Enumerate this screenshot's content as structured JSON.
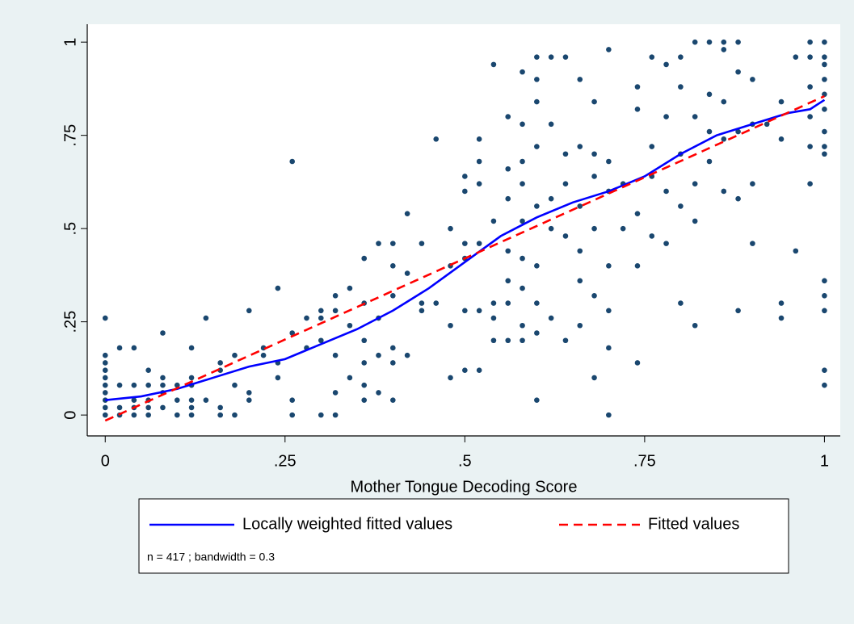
{
  "chart_data": {
    "type": "scatter",
    "x_label": "Mother Tongue Decoding Score",
    "xlim": [
      -0.025,
      1.022
    ],
    "ylim": [
      -0.056,
      1.048
    ],
    "xticks": [
      0,
      {
        "value": 0.25,
        "label": ".25"
      },
      {
        "value": 0.5,
        "label": ".5"
      },
      {
        "value": 0.75,
        "label": ".75"
      },
      1
    ],
    "yticks": [
      0,
      {
        "value": 0.25,
        "label": ".25"
      },
      {
        "value": 0.5,
        "label": ".5"
      },
      {
        "value": 0.75,
        "label": ".75"
      },
      1
    ],
    "note": "n = 417 ; bandwidth = 0.3",
    "series": [
      {
        "type": "scatter",
        "color": "#1a476f",
        "x": [
          0,
          0,
          0,
          0,
          0,
          0,
          0,
          0,
          0,
          0,
          0.02,
          0.02,
          0.02,
          0.02,
          0.04,
          0.04,
          0.04,
          0.04,
          0.04,
          0.06,
          0.06,
          0.06,
          0.06,
          0.06,
          0.08,
          0.08,
          0.08,
          0.08,
          0.08,
          0.1,
          0.1,
          0.1,
          0.12,
          0.12,
          0.12,
          0.12,
          0.12,
          0.12,
          0.14,
          0.14,
          0.16,
          0.16,
          0.16,
          0.16,
          0.18,
          0.18,
          0.18,
          0.2,
          0.2,
          0.2,
          0.22,
          0.22,
          0.24,
          0.24,
          0.24,
          0.26,
          0.26,
          0.26,
          0.26,
          0.28,
          0.28,
          0.3,
          0.3,
          0.3,
          0.3,
          0.32,
          0.32,
          0.32,
          0.32,
          0.32,
          0.34,
          0.34,
          0.34,
          0.36,
          0.36,
          0.36,
          0.36,
          0.36,
          0.36,
          0.38,
          0.38,
          0.38,
          0.38,
          0.4,
          0.4,
          0.4,
          0.4,
          0.4,
          0.4,
          0.42,
          0.42,
          0.42,
          0.44,
          0.44,
          0.44,
          0.46,
          0.46,
          0.48,
          0.48,
          0.48,
          0.48,
          0.5,
          0.5,
          0.5,
          0.5,
          0.5,
          0.5,
          0.52,
          0.52,
          0.52,
          0.52,
          0.52,
          0.52,
          0.54,
          0.54,
          0.54,
          0.54,
          0.54,
          0.56,
          0.56,
          0.56,
          0.56,
          0.56,
          0.56,
          0.56,
          0.58,
          0.58,
          0.58,
          0.58,
          0.58,
          0.58,
          0.58,
          0.58,
          0.58,
          0.6,
          0.6,
          0.6,
          0.6,
          0.6,
          0.6,
          0.6,
          0.6,
          0.6,
          0.62,
          0.62,
          0.62,
          0.62,
          0.62,
          0.64,
          0.64,
          0.64,
          0.64,
          0.64,
          0.66,
          0.66,
          0.66,
          0.66,
          0.66,
          0.66,
          0.68,
          0.68,
          0.68,
          0.68,
          0.68,
          0.68,
          0.7,
          0.7,
          0.7,
          0.7,
          0.7,
          0.7,
          0.7,
          0.72,
          0.72,
          0.74,
          0.74,
          0.74,
          0.74,
          0.74,
          0.76,
          0.76,
          0.76,
          0.76,
          0.78,
          0.78,
          0.78,
          0.78,
          0.8,
          0.8,
          0.8,
          0.8,
          0.8,
          0.82,
          0.82,
          0.82,
          0.82,
          0.82,
          0.84,
          0.84,
          0.84,
          0.84,
          0.86,
          0.86,
          0.86,
          0.86,
          0.86,
          0.88,
          0.88,
          0.88,
          0.88,
          0.88,
          0.9,
          0.9,
          0.9,
          0.9,
          0.92,
          0.94,
          0.94,
          0.94,
          0.94,
          0.96,
          0.96,
          0.98,
          0.98,
          0.98,
          0.98,
          0.98,
          0.98,
          1,
          1,
          1,
          1,
          1,
          1,
          1,
          1,
          1,
          1,
          1,
          1,
          1,
          1
        ],
        "values": [
          0,
          0.02,
          0.04,
          0.06,
          0.08,
          0.1,
          0.12,
          0.14,
          0.16,
          0.26,
          0,
          0.02,
          0.08,
          0.18,
          0,
          0.02,
          0.04,
          0.08,
          0.18,
          0,
          0.02,
          0.04,
          0.08,
          0.12,
          0.02,
          0.06,
          0.08,
          0.1,
          0.22,
          0,
          0.04,
          0.08,
          0,
          0.02,
          0.04,
          0.08,
          0.1,
          0.18,
          0.04,
          0.26,
          0,
          0.02,
          0.12,
          0.14,
          0,
          0.08,
          0.16,
          0.04,
          0.06,
          0.28,
          0.16,
          0.18,
          0.1,
          0.14,
          0.34,
          0,
          0.04,
          0.22,
          0.68,
          0.18,
          0.26,
          0,
          0.2,
          0.26,
          0.28,
          0,
          0.06,
          0.16,
          0.28,
          0.32,
          0.1,
          0.24,
          0.34,
          0.04,
          0.08,
          0.14,
          0.2,
          0.3,
          0.42,
          0.06,
          0.16,
          0.26,
          0.46,
          0.04,
          0.14,
          0.18,
          0.32,
          0.4,
          0.46,
          0.16,
          0.38,
          0.54,
          0.28,
          0.3,
          0.46,
          0.3,
          0.74,
          0.1,
          0.24,
          0.4,
          0.5,
          0.12,
          0.28,
          0.42,
          0.46,
          0.6,
          0.64,
          0.12,
          0.28,
          0.46,
          0.62,
          0.68,
          0.74,
          0.2,
          0.26,
          0.3,
          0.52,
          0.94,
          0.2,
          0.3,
          0.36,
          0.44,
          0.58,
          0.66,
          0.8,
          0.2,
          0.24,
          0.34,
          0.42,
          0.52,
          0.62,
          0.68,
          0.78,
          0.92,
          0.04,
          0.22,
          0.3,
          0.4,
          0.56,
          0.72,
          0.84,
          0.9,
          0.96,
          0.26,
          0.5,
          0.58,
          0.78,
          0.96,
          0.2,
          0.48,
          0.62,
          0.7,
          0.96,
          0.24,
          0.36,
          0.44,
          0.56,
          0.72,
          0.9,
          0.1,
          0.32,
          0.5,
          0.64,
          0.7,
          0.84,
          0,
          0.18,
          0.28,
          0.4,
          0.6,
          0.68,
          0.98,
          0.5,
          0.62,
          0.14,
          0.4,
          0.54,
          0.82,
          0.88,
          0.48,
          0.64,
          0.72,
          0.96,
          0.46,
          0.6,
          0.8,
          0.94,
          0.3,
          0.56,
          0.7,
          0.88,
          0.96,
          0.24,
          0.52,
          0.62,
          0.8,
          1,
          0.68,
          0.76,
          0.86,
          1,
          0.6,
          0.74,
          0.84,
          0.98,
          1,
          0.28,
          0.58,
          0.76,
          0.92,
          1,
          0.46,
          0.62,
          0.78,
          0.9,
          0.78,
          0.26,
          0.3,
          0.74,
          0.84,
          0.44,
          0.96,
          0.62,
          0.72,
          0.8,
          0.88,
          0.96,
          1,
          0.08,
          0.12,
          0.28,
          0.32,
          0.36,
          0.7,
          0.72,
          0.76,
          0.82,
          0.86,
          0.9,
          0.94,
          0.96,
          1
        ]
      },
      {
        "type": "line",
        "name": "Locally weighted fitted values",
        "color": "#0000ff",
        "dashed": false,
        "x": [
          0,
          0.05,
          0.1,
          0.15,
          0.2,
          0.25,
          0.3,
          0.35,
          0.4,
          0.45,
          0.5,
          0.55,
          0.6,
          0.65,
          0.7,
          0.75,
          0.8,
          0.85,
          0.9,
          0.95,
          0.98,
          1
        ],
        "values": [
          0.04,
          0.05,
          0.07,
          0.1,
          0.13,
          0.15,
          0.19,
          0.23,
          0.28,
          0.34,
          0.41,
          0.48,
          0.53,
          0.57,
          0.6,
          0.64,
          0.7,
          0.75,
          0.78,
          0.81,
          0.82,
          0.845
        ]
      },
      {
        "type": "line",
        "name": "Fitted values",
        "color": "#ff0000",
        "dashed": true,
        "x": [
          0,
          1
        ],
        "values": [
          -0.015,
          0.855
        ]
      }
    ]
  }
}
